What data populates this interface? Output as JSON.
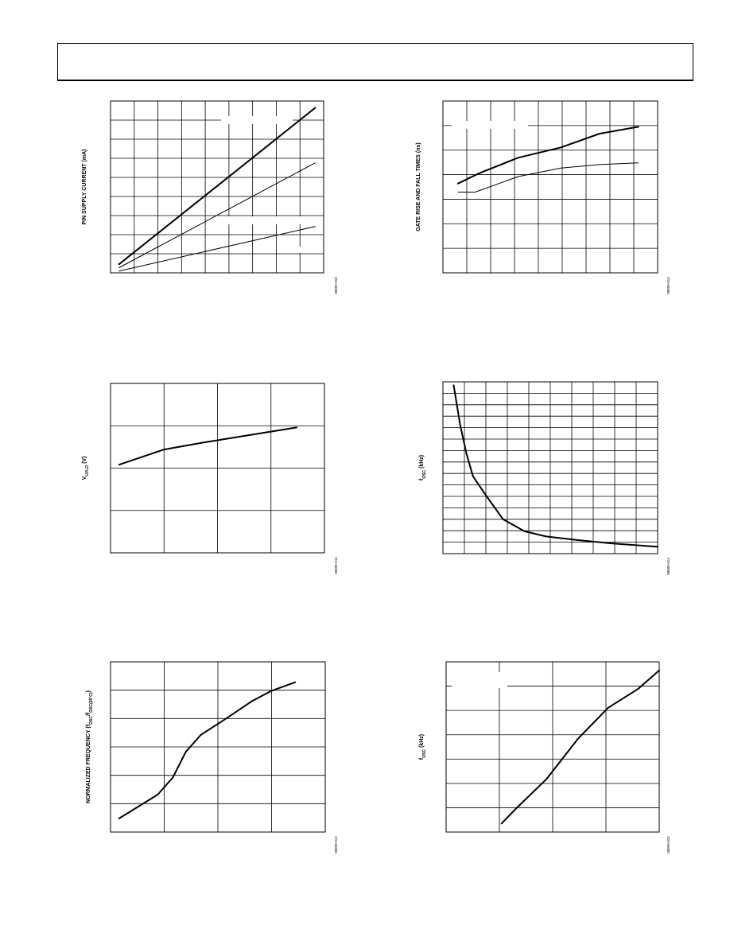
{
  "charts": [
    {
      "id": "pin-supply-current",
      "ylabel": "PIN SUPPLY CURRENT (mA)",
      "figure_code": "08899-010",
      "grid": {
        "cols": 9,
        "rows": 9
      },
      "series": [
        {
          "stroke": 2.0,
          "points": [
            [
              0.04,
              0.05
            ],
            [
              0.96,
              0.96
            ]
          ]
        },
        {
          "stroke": 1.0,
          "points": [
            [
              0.04,
              0.03
            ],
            [
              0.96,
              0.64
            ]
          ]
        },
        {
          "stroke": 1.0,
          "points": [
            [
              0.04,
              0.01
            ],
            [
              0.96,
              0.27
            ]
          ]
        }
      ]
    },
    {
      "id": "gate-rise-fall-times",
      "ylabel": "GATE RISE AND FALL TIMES (ns)",
      "figure_code": "08899-013",
      "grid": {
        "cols": 9,
        "rows": 7
      },
      "series": [
        {
          "stroke": 2.0,
          "points": [
            [
              0.07,
              0.52
            ],
            [
              0.17,
              0.58
            ],
            [
              0.35,
              0.67
            ],
            [
              0.55,
              0.73
            ],
            [
              0.73,
              0.81
            ],
            [
              0.91,
              0.85
            ]
          ]
        },
        {
          "stroke": 1.0,
          "points": [
            [
              0.07,
              0.47
            ],
            [
              0.15,
              0.47
            ],
            [
              0.35,
              0.56
            ],
            [
              0.55,
              0.61
            ],
            [
              0.73,
              0.63
            ],
            [
              0.91,
              0.64
            ]
          ]
        }
      ]
    },
    {
      "id": "vuvlo",
      "ylabel_main": "V",
      "ylabel_sub": "UVLO",
      "ylabel_unit": " (V)",
      "figure_code": "08899-011",
      "grid": {
        "cols": 4,
        "rows": 4
      },
      "series": [
        {
          "stroke": 2.0,
          "points": [
            [
              0.04,
              0.52
            ],
            [
              0.25,
              0.61
            ],
            [
              0.43,
              0.65
            ],
            [
              0.87,
              0.74
            ]
          ]
        }
      ]
    },
    {
      "id": "fosc-vs-resistor",
      "ylabel_main": "f",
      "ylabel_sub": "OSC",
      "ylabel_unit": " (kHz)",
      "figure_code": "08899-014",
      "grid": {
        "cols": 10,
        "rows": 15
      },
      "series": [
        {
          "stroke": 2.0,
          "points": [
            [
              0.05,
              0.98
            ],
            [
              0.08,
              0.75
            ],
            [
              0.11,
              0.58
            ],
            [
              0.14,
              0.45
            ],
            [
              0.2,
              0.34
            ],
            [
              0.28,
              0.2
            ],
            [
              0.38,
              0.13
            ],
            [
              0.48,
              0.1
            ],
            [
              0.62,
              0.08
            ],
            [
              0.78,
              0.06
            ],
            [
              1.0,
              0.04
            ]
          ]
        }
      ]
    },
    {
      "id": "normalized-frequency",
      "ylabel": "NORMALIZED FREQUENCY (f",
      "ylabel_tail": "OSC",
      "ylabel_tail2": "/f",
      "ylabel_tail3": "OSC(25°C)",
      "ylabel_tail4": ")",
      "figure_code": "08899-012",
      "grid": {
        "cols": 4,
        "rows": 6
      },
      "series": [
        {
          "stroke": 2.0,
          "points": [
            [
              0.04,
              0.08
            ],
            [
              0.22,
              0.22
            ],
            [
              0.29,
              0.32
            ],
            [
              0.35,
              0.47
            ],
            [
              0.42,
              0.57
            ],
            [
              0.53,
              0.66
            ],
            [
              0.66,
              0.77
            ],
            [
              0.75,
              0.83
            ],
            [
              0.86,
              0.88
            ]
          ]
        }
      ]
    },
    {
      "id": "fosc-vs-voltage",
      "ylabel_main": "f",
      "ylabel_sub": "OSC",
      "ylabel_unit": " (kHz)",
      "figure_code": "08899-015",
      "grid": {
        "cols": 4,
        "rows": 7
      },
      "series": [
        {
          "stroke": 2.0,
          "points": [
            [
              0.26,
              0.05
            ],
            [
              0.33,
              0.14
            ],
            [
              0.47,
              0.31
            ],
            [
              0.62,
              0.55
            ],
            [
              0.76,
              0.73
            ],
            [
              0.9,
              0.84
            ],
            [
              1.0,
              0.95
            ]
          ]
        }
      ]
    }
  ]
}
